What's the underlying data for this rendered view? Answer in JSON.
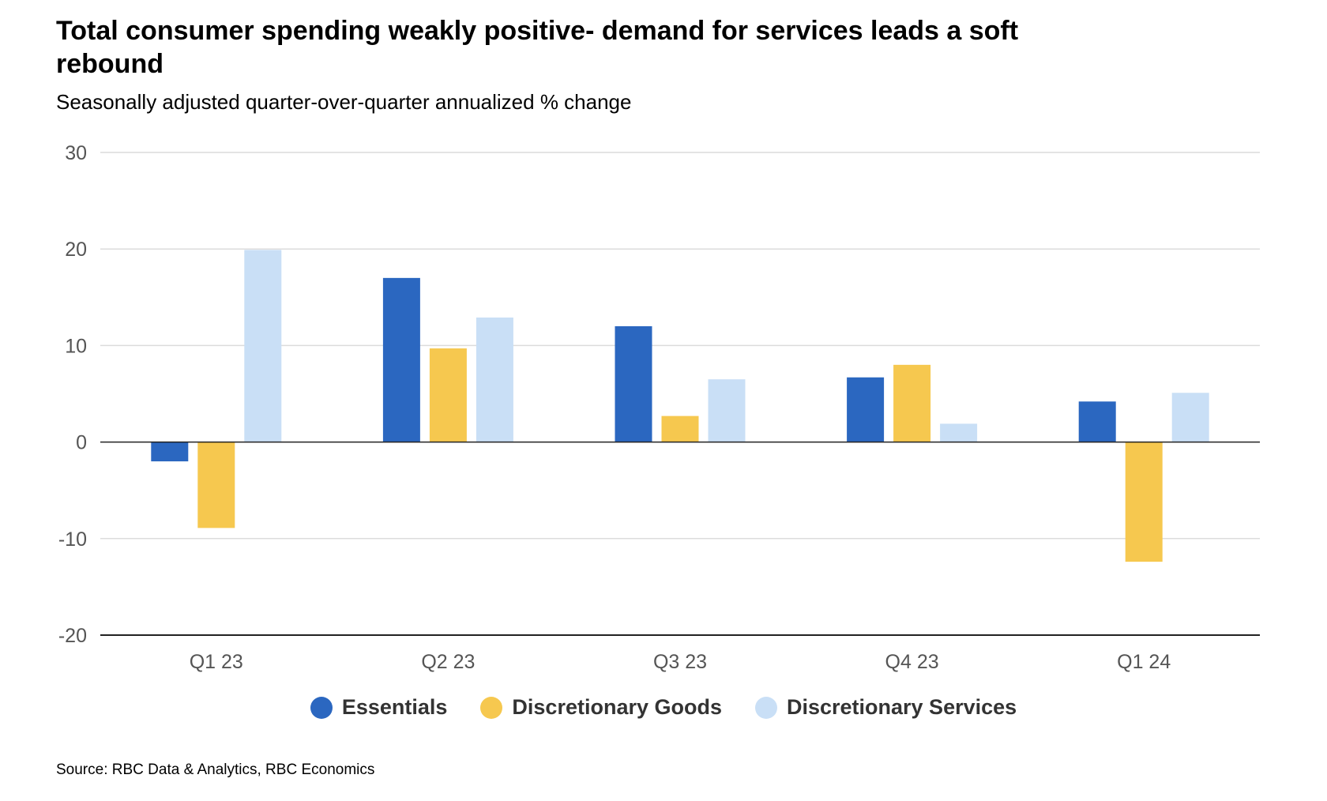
{
  "title": "Total consumer spending weakly positive- demand for services leads a soft rebound",
  "subtitle": "Seasonally adjusted quarter-over-quarter annualized % change",
  "source": "Source: RBC Data & Analytics, RBC Economics",
  "chart_data": {
    "type": "bar",
    "title": "Total consumer spending weakly positive- demand for services leads a soft rebound",
    "subtitle": "Seasonally adjusted quarter-over-quarter annualized % change",
    "xlabel": "",
    "ylabel": "",
    "categories": [
      "Q1 23",
      "Q2 23",
      "Q3 23",
      "Q4 23",
      "Q1 24"
    ],
    "ylim": [
      -20,
      30
    ],
    "yticks": [
      30,
      20,
      10,
      0,
      -10,
      -20
    ],
    "grid": true,
    "legend_position": "bottom",
    "series": [
      {
        "name": "Essentials",
        "color": "#2B67C0",
        "values": [
          -2.0,
          17.0,
          12.0,
          6.7,
          4.2
        ]
      },
      {
        "name": "Discretionary Goods",
        "color": "#F6C84F",
        "values": [
          -8.9,
          9.7,
          2.7,
          8.0,
          -12.4
        ]
      },
      {
        "name": "Discretionary Services",
        "color": "#C9DFF6",
        "values": [
          19.9,
          12.9,
          6.5,
          1.9,
          5.1
        ]
      }
    ]
  }
}
